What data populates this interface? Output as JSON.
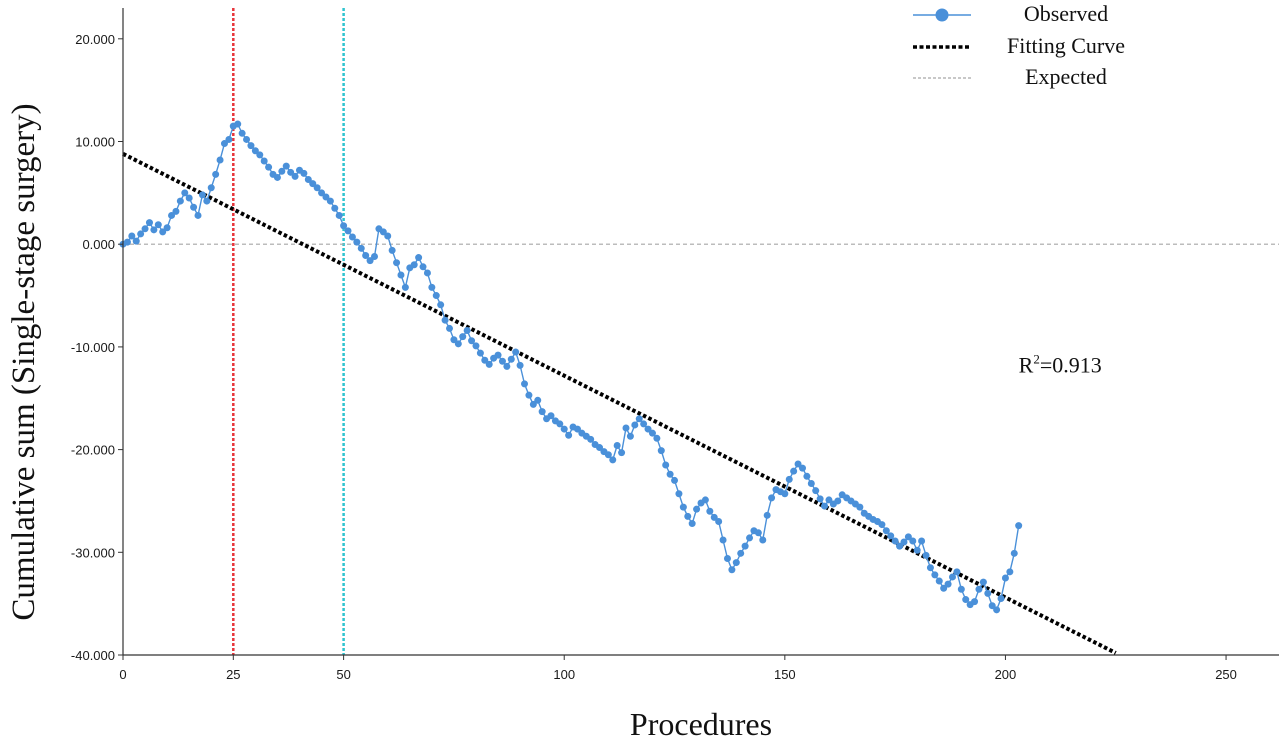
{
  "chart_data": {
    "type": "line",
    "xlabel": "Procedures",
    "ylabel": "Cumulative sum (Single-stage surgery)",
    "xlim": [
      0,
      262
    ],
    "ylim": [
      -40,
      23
    ],
    "x_ticks": [
      0,
      25,
      50,
      100,
      150,
      200,
      250
    ],
    "y_ticks": [
      {
        "value": 20,
        "label": "20.000"
      },
      {
        "value": 10,
        "label": "10.000"
      },
      {
        "value": 0,
        "label": "0.000"
      },
      {
        "value": -10,
        "label": "-10.000"
      },
      {
        "value": -20,
        "label": "-20.000"
      },
      {
        "value": -30,
        "label": "-30.000"
      },
      {
        "value": -40,
        "label": "-40.000"
      }
    ],
    "legend": {
      "position": "top-right",
      "entries": [
        {
          "label": "Observed",
          "style": "line-marker"
        },
        {
          "label": "Fitting Curve",
          "style": "dotted-thick"
        },
        {
          "label": "Expected",
          "style": "dashed-thin"
        }
      ]
    },
    "annotation": {
      "base": "R",
      "sup": "2",
      "rest": "=0.913",
      "x": 203,
      "y": -12.5
    },
    "colors": {
      "observed": "#4a90d9",
      "fit": "#000000",
      "expected": "#a6a6a6",
      "vline_25": "#e8343a",
      "vline_50": "#2ec4cf"
    },
    "reference_lines": [
      {
        "x": 25,
        "color_key": "vline_25"
      },
      {
        "x": 50,
        "color_key": "vline_50"
      }
    ],
    "expected_y": 0,
    "fitting_curve": {
      "x": [
        0,
        225
      ],
      "y": [
        8.8,
        -39.8
      ]
    },
    "series": [
      {
        "name": "Observed",
        "points": [
          [
            0,
            0.0
          ],
          [
            1,
            0.2
          ],
          [
            2,
            0.8
          ],
          [
            3,
            0.3
          ],
          [
            4,
            1.0
          ],
          [
            5,
            1.5
          ],
          [
            6,
            2.1
          ],
          [
            7,
            1.4
          ],
          [
            8,
            1.9
          ],
          [
            9,
            1.2
          ],
          [
            10,
            1.6
          ],
          [
            11,
            2.8
          ],
          [
            12,
            3.2
          ],
          [
            13,
            4.2
          ],
          [
            14,
            5.0
          ],
          [
            15,
            4.5
          ],
          [
            16,
            3.6
          ],
          [
            17,
            2.8
          ],
          [
            18,
            4.8
          ],
          [
            19,
            4.2
          ],
          [
            20,
            5.5
          ],
          [
            21,
            6.8
          ],
          [
            22,
            8.2
          ],
          [
            23,
            9.8
          ],
          [
            24,
            10.2
          ],
          [
            25,
            11.5
          ],
          [
            26,
            11.7
          ],
          [
            27,
            10.8
          ],
          [
            28,
            10.2
          ],
          [
            29,
            9.6
          ],
          [
            30,
            9.1
          ],
          [
            31,
            8.7
          ],
          [
            32,
            8.1
          ],
          [
            33,
            7.5
          ],
          [
            34,
            6.8
          ],
          [
            35,
            6.5
          ],
          [
            36,
            7.1
          ],
          [
            37,
            7.6
          ],
          [
            38,
            7.0
          ],
          [
            39,
            6.6
          ],
          [
            40,
            7.2
          ],
          [
            41,
            6.9
          ],
          [
            42,
            6.3
          ],
          [
            43,
            5.9
          ],
          [
            44,
            5.5
          ],
          [
            45,
            5.0
          ],
          [
            46,
            4.6
          ],
          [
            47,
            4.2
          ],
          [
            48,
            3.5
          ],
          [
            49,
            2.8
          ],
          [
            50,
            1.8
          ],
          [
            51,
            1.3
          ],
          [
            52,
            0.7
          ],
          [
            53,
            0.2
          ],
          [
            54,
            -0.4
          ],
          [
            55,
            -1.1
          ],
          [
            56,
            -1.6
          ],
          [
            57,
            -1.2
          ],
          [
            58,
            1.5
          ],
          [
            59,
            1.2
          ],
          [
            60,
            0.8
          ],
          [
            61,
            -0.6
          ],
          [
            62,
            -1.8
          ],
          [
            63,
            -3.0
          ],
          [
            64,
            -4.2
          ],
          [
            65,
            -2.3
          ],
          [
            66,
            -2.0
          ],
          [
            67,
            -1.3
          ],
          [
            68,
            -2.2
          ],
          [
            69,
            -2.8
          ],
          [
            70,
            -4.2
          ],
          [
            71,
            -5.0
          ],
          [
            72,
            -5.9
          ],
          [
            73,
            -7.4
          ],
          [
            74,
            -8.2
          ],
          [
            75,
            -9.3
          ],
          [
            76,
            -9.7
          ],
          [
            77,
            -9.0
          ],
          [
            78,
            -8.4
          ],
          [
            79,
            -9.4
          ],
          [
            80,
            -9.9
          ],
          [
            81,
            -10.6
          ],
          [
            82,
            -11.3
          ],
          [
            83,
            -11.7
          ],
          [
            84,
            -11.1
          ],
          [
            85,
            -10.8
          ],
          [
            86,
            -11.4
          ],
          [
            87,
            -11.9
          ],
          [
            88,
            -11.2
          ],
          [
            89,
            -10.5
          ],
          [
            90,
            -11.8
          ],
          [
            91,
            -13.6
          ],
          [
            92,
            -14.7
          ],
          [
            93,
            -15.6
          ],
          [
            94,
            -15.2
          ],
          [
            95,
            -16.3
          ],
          [
            96,
            -17.0
          ],
          [
            97,
            -16.7
          ],
          [
            98,
            -17.2
          ],
          [
            99,
            -17.5
          ],
          [
            100,
            -18.0
          ],
          [
            101,
            -18.6
          ],
          [
            102,
            -17.8
          ],
          [
            103,
            -18.0
          ],
          [
            104,
            -18.4
          ],
          [
            105,
            -18.7
          ],
          [
            106,
            -19.0
          ],
          [
            107,
            -19.5
          ],
          [
            108,
            -19.8
          ],
          [
            109,
            -20.2
          ],
          [
            110,
            -20.5
          ],
          [
            111,
            -21.0
          ],
          [
            112,
            -19.6
          ],
          [
            113,
            -20.3
          ],
          [
            114,
            -17.9
          ],
          [
            115,
            -18.7
          ],
          [
            116,
            -17.6
          ],
          [
            117,
            -17.0
          ],
          [
            118,
            -17.5
          ],
          [
            119,
            -18.0
          ],
          [
            120,
            -18.4
          ],
          [
            121,
            -18.9
          ],
          [
            122,
            -20.1
          ],
          [
            123,
            -21.5
          ],
          [
            124,
            -22.4
          ],
          [
            125,
            -23.0
          ],
          [
            126,
            -24.3
          ],
          [
            127,
            -25.6
          ],
          [
            128,
            -26.5
          ],
          [
            129,
            -27.2
          ],
          [
            130,
            -25.8
          ],
          [
            131,
            -25.2
          ],
          [
            132,
            -24.9
          ],
          [
            133,
            -26.0
          ],
          [
            134,
            -26.6
          ],
          [
            135,
            -27.0
          ],
          [
            136,
            -28.8
          ],
          [
            137,
            -30.6
          ],
          [
            138,
            -31.7
          ],
          [
            139,
            -31.0
          ],
          [
            140,
            -30.1
          ],
          [
            141,
            -29.4
          ],
          [
            142,
            -28.6
          ],
          [
            143,
            -27.9
          ],
          [
            144,
            -28.1
          ],
          [
            145,
            -28.8
          ],
          [
            146,
            -26.4
          ],
          [
            147,
            -24.7
          ],
          [
            148,
            -23.9
          ],
          [
            149,
            -24.1
          ],
          [
            150,
            -24.3
          ],
          [
            151,
            -22.9
          ],
          [
            152,
            -22.1
          ],
          [
            153,
            -21.4
          ],
          [
            154,
            -21.8
          ],
          [
            155,
            -22.6
          ],
          [
            156,
            -23.3
          ],
          [
            157,
            -24.0
          ],
          [
            158,
            -24.8
          ],
          [
            159,
            -25.5
          ],
          [
            160,
            -24.9
          ],
          [
            161,
            -25.3
          ],
          [
            162,
            -25.0
          ],
          [
            163,
            -24.4
          ],
          [
            164,
            -24.7
          ],
          [
            165,
            -25.0
          ],
          [
            166,
            -25.3
          ],
          [
            167,
            -25.6
          ],
          [
            168,
            -26.2
          ],
          [
            169,
            -26.5
          ],
          [
            170,
            -26.8
          ],
          [
            171,
            -27.0
          ],
          [
            172,
            -27.3
          ],
          [
            173,
            -27.9
          ],
          [
            174,
            -28.4
          ],
          [
            175,
            -28.9
          ],
          [
            176,
            -29.4
          ],
          [
            177,
            -29.0
          ],
          [
            178,
            -28.5
          ],
          [
            179,
            -28.9
          ],
          [
            180,
            -29.8
          ],
          [
            181,
            -28.9
          ],
          [
            182,
            -30.3
          ],
          [
            183,
            -31.5
          ],
          [
            184,
            -32.2
          ],
          [
            185,
            -32.8
          ],
          [
            186,
            -33.5
          ],
          [
            187,
            -33.1
          ],
          [
            188,
            -32.4
          ],
          [
            189,
            -31.9
          ],
          [
            190,
            -33.6
          ],
          [
            191,
            -34.6
          ],
          [
            192,
            -35.1
          ],
          [
            193,
            -34.8
          ],
          [
            194,
            -33.6
          ],
          [
            195,
            -32.9
          ],
          [
            196,
            -34.0
          ],
          [
            197,
            -35.2
          ],
          [
            198,
            -35.6
          ],
          [
            199,
            -34.5
          ],
          [
            200,
            -32.5
          ],
          [
            201,
            -31.9
          ],
          [
            202,
            -30.1
          ],
          [
            203,
            -27.4
          ]
        ]
      }
    ]
  }
}
